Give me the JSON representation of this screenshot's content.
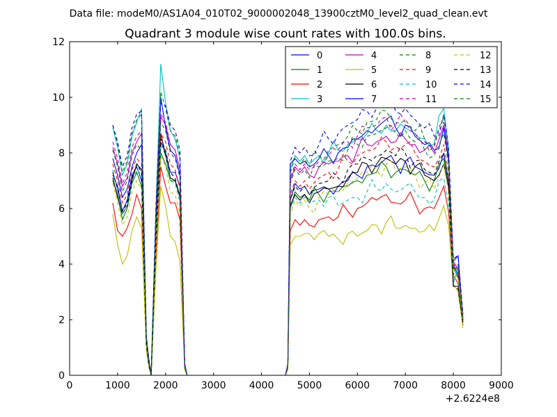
{
  "suptitle": "Data file: modeM0/AS1A04_010T02_9000002048_13900cztM0_level2_quad_clean.evt",
  "chart_data": {
    "type": "line",
    "title": "Quadrant 3 module wise count rates with 100.0s bins.",
    "xlabel": "",
    "ylabel": "",
    "x_offset_label": "+2.6224e8",
    "xlim": [
      0,
      9000
    ],
    "ylim": [
      0,
      12
    ],
    "x_ticks": [
      0,
      1000,
      2000,
      3000,
      4000,
      5000,
      6000,
      7000,
      8000,
      9000
    ],
    "y_ticks": [
      0,
      2,
      4,
      6,
      8,
      10,
      12
    ],
    "grid": false,
    "legend_position": "top-right",
    "legend_columns": 4,
    "anchor_x": [
      900,
      1000,
      1100,
      1200,
      1300,
      1400,
      1500,
      1600,
      1650,
      1700,
      1800,
      1900,
      2000,
      2100,
      2200,
      2300,
      2400,
      2450,
      2600,
      3500,
      4500,
      4550,
      4600,
      4700,
      4800,
      4900,
      5000,
      5200,
      5400,
      5600,
      5800,
      6000,
      6200,
      6400,
      6600,
      6800,
      7000,
      7200,
      7400,
      7600,
      7800,
      7900,
      8000,
      8100,
      8200
    ],
    "series": [
      {
        "name": "0",
        "color": "#0000ff",
        "style": "solid",
        "values": [
          7.2,
          6.8,
          5.9,
          6.3,
          7.2,
          7.5,
          7.0,
          1.2,
          0.5,
          0.0,
          5.0,
          8.4,
          8.0,
          7.3,
          7.3,
          6.8,
          0.3,
          0.0,
          0.0,
          0.0,
          0.0,
          0.3,
          6.3,
          6.9,
          6.7,
          6.8,
          6.5,
          6.7,
          6.7,
          6.8,
          7.0,
          7.2,
          7.5,
          7.5,
          7.8,
          7.6,
          7.7,
          7.5,
          7.3,
          7.2,
          8.0,
          7.0,
          4.0,
          3.6,
          2.0
        ]
      },
      {
        "name": "1",
        "color": "#008000",
        "style": "solid",
        "values": [
          7.0,
          6.5,
          5.6,
          6.0,
          6.9,
          7.3,
          6.8,
          1.1,
          0.4,
          0.0,
          4.8,
          8.0,
          7.6,
          7.0,
          7.0,
          6.5,
          0.3,
          0.0,
          0.0,
          0.0,
          0.0,
          0.3,
          6.0,
          6.6,
          6.4,
          6.5,
          6.3,
          6.5,
          6.6,
          6.6,
          6.8,
          7.0,
          7.2,
          7.3,
          7.5,
          7.3,
          7.4,
          7.2,
          7.0,
          7.0,
          7.8,
          6.8,
          3.9,
          3.5,
          1.9
        ]
      },
      {
        "name": "2",
        "color": "#ff0000",
        "style": "solid",
        "values": [
          6.2,
          5.2,
          5.0,
          5.3,
          5.8,
          6.5,
          6.0,
          1.0,
          0.4,
          0.0,
          4.3,
          7.5,
          6.8,
          6.2,
          6.2,
          5.6,
          0.3,
          0.0,
          0.0,
          0.0,
          0.0,
          0.3,
          5.2,
          5.6,
          5.4,
          5.6,
          5.4,
          5.6,
          5.7,
          5.7,
          5.9,
          6.0,
          6.2,
          6.3,
          6.5,
          6.2,
          6.3,
          6.2,
          6.0,
          6.0,
          6.8,
          5.9,
          3.6,
          3.3,
          1.8
        ]
      },
      {
        "name": "3",
        "color": "#00bfbf",
        "style": "solid",
        "values": [
          8.9,
          8.2,
          7.2,
          7.6,
          8.6,
          9.1,
          9.6,
          1.4,
          0.6,
          0.0,
          6.0,
          11.2,
          9.8,
          8.8,
          8.5,
          7.8,
          0.4,
          0.0,
          0.0,
          0.0,
          0.0,
          0.4,
          7.4,
          7.9,
          7.7,
          7.9,
          7.6,
          7.9,
          8.0,
          8.1,
          8.3,
          8.5,
          8.7,
          8.8,
          9.0,
          8.8,
          8.9,
          8.7,
          8.5,
          8.3,
          9.6,
          8.2,
          3.3,
          3.9,
          2.2
        ]
      },
      {
        "name": "4",
        "color": "#bf00bf",
        "style": "solid",
        "values": [
          8.2,
          7.6,
          6.8,
          7.1,
          8.0,
          8.4,
          8.7,
          1.3,
          0.5,
          0.0,
          5.6,
          9.3,
          9.0,
          8.3,
          8.1,
          7.4,
          0.4,
          0.0,
          0.0,
          0.0,
          0.0,
          0.4,
          7.0,
          7.5,
          7.3,
          7.5,
          7.2,
          7.5,
          7.6,
          7.7,
          7.9,
          8.1,
          8.3,
          8.4,
          8.6,
          8.4,
          8.5,
          8.3,
          8.1,
          8.0,
          9.0,
          7.8,
          4.1,
          3.8,
          2.1
        ]
      },
      {
        "name": "5",
        "color": "#bfbf00",
        "style": "solid",
        "values": [
          5.8,
          4.7,
          4.0,
          4.3,
          5.2,
          5.7,
          5.3,
          0.9,
          0.3,
          0.0,
          3.8,
          6.8,
          6.1,
          5.0,
          4.8,
          4.1,
          0.2,
          0.0,
          0.0,
          0.0,
          0.0,
          0.2,
          4.7,
          5.0,
          5.0,
          5.1,
          5.1,
          5.1,
          5.0,
          4.9,
          5.1,
          5.0,
          5.2,
          5.4,
          5.5,
          5.3,
          5.4,
          5.3,
          5.2,
          5.2,
          6.1,
          5.4,
          3.3,
          3.0,
          1.7
        ]
      },
      {
        "name": "6",
        "color": "#000000",
        "style": "solid",
        "values": [
          7.1,
          6.4,
          5.8,
          6.1,
          7.0,
          7.6,
          7.4,
          1.1,
          0.4,
          0.0,
          4.9,
          8.7,
          7.9,
          7.1,
          7.0,
          6.4,
          0.3,
          0.0,
          0.0,
          0.0,
          0.0,
          0.3,
          6.1,
          6.5,
          6.3,
          6.5,
          6.2,
          6.6,
          6.7,
          6.8,
          7.1,
          7.3,
          7.6,
          7.6,
          7.8,
          7.6,
          7.7,
          7.5,
          7.2,
          7.0,
          7.6,
          6.8,
          3.2,
          3.2,
          1.9
        ]
      },
      {
        "name": "7",
        "color": "#0000ff",
        "style": "solid",
        "values": [
          7.8,
          7.2,
          6.4,
          6.7,
          7.5,
          8.0,
          8.3,
          1.2,
          0.5,
          0.0,
          5.4,
          10.0,
          8.9,
          8.1,
          7.9,
          7.2,
          0.4,
          0.0,
          0.0,
          0.0,
          0.0,
          0.4,
          7.6,
          7.8,
          7.6,
          7.7,
          7.5,
          7.8,
          7.9,
          8.0,
          8.2,
          8.5,
          8.8,
          8.9,
          9.2,
          8.9,
          9.0,
          8.6,
          8.3,
          8.1,
          8.9,
          7.7,
          4.1,
          4.3,
          2.0
        ]
      },
      {
        "name": "8",
        "color": "#008000",
        "style": "dashed",
        "values": [
          9.0,
          8.3,
          7.3,
          7.7,
          8.7,
          9.2,
          9.4,
          1.4,
          0.6,
          0.0,
          6.0,
          10.2,
          9.6,
          8.8,
          8.6,
          7.9,
          0.4,
          0.0,
          0.0,
          0.0,
          0.0,
          0.4,
          7.3,
          7.8,
          7.6,
          7.8,
          7.5,
          7.9,
          8.1,
          8.3,
          8.6,
          8.8,
          9.1,
          9.2,
          9.5,
          9.1,
          9.2,
          8.8,
          8.5,
          8.3,
          9.3,
          8.0,
          3.6,
          4.0,
          2.2
        ]
      },
      {
        "name": "9",
        "color": "#ff0000",
        "style": "dashed",
        "values": [
          7.6,
          7.0,
          6.2,
          6.5,
          7.4,
          7.8,
          7.6,
          1.2,
          0.5,
          0.0,
          5.2,
          8.7,
          8.4,
          7.6,
          7.4,
          6.7,
          0.3,
          0.0,
          0.0,
          0.0,
          0.0,
          0.3,
          6.5,
          7.0,
          6.8,
          7.0,
          6.7,
          7.1,
          7.3,
          7.4,
          7.7,
          7.9,
          8.1,
          8.2,
          8.4,
          8.2,
          8.3,
          8.0,
          7.7,
          7.5,
          8.3,
          7.3,
          3.9,
          3.7,
          2.0
        ]
      },
      {
        "name": "10",
        "color": "#00bfbf",
        "style": "dashed",
        "values": [
          7.4,
          6.6,
          5.8,
          6.1,
          6.9,
          7.4,
          7.2,
          1.1,
          0.4,
          0.0,
          4.9,
          8.3,
          7.9,
          7.0,
          6.9,
          6.2,
          0.3,
          0.0,
          0.0,
          0.0,
          0.0,
          0.3,
          6.0,
          6.4,
          6.2,
          6.4,
          6.2,
          6.3,
          6.4,
          6.1,
          6.3,
          6.4,
          6.6,
          6.7,
          6.9,
          6.6,
          6.8,
          6.6,
          6.4,
          6.3,
          7.1,
          6.2,
          3.5,
          3.4,
          1.9
        ]
      },
      {
        "name": "11",
        "color": "#bf00bf",
        "style": "dashed",
        "values": [
          8.4,
          7.8,
          6.9,
          7.3,
          8.2,
          8.6,
          8.8,
          1.3,
          0.5,
          0.0,
          5.7,
          9.4,
          9.1,
          8.3,
          8.1,
          7.4,
          0.4,
          0.0,
          0.0,
          0.0,
          0.0,
          0.4,
          7.1,
          7.6,
          7.4,
          7.6,
          7.4,
          7.7,
          7.9,
          8.1,
          8.4,
          8.6,
          8.9,
          9.0,
          9.3,
          9.0,
          9.1,
          8.7,
          8.4,
          8.2,
          9.1,
          7.9,
          4.0,
          3.9,
          2.1
        ]
      },
      {
        "name": "12",
        "color": "#bfbf00",
        "style": "dashed",
        "values": [
          6.9,
          6.2,
          5.4,
          5.7,
          6.6,
          7.0,
          6.7,
          1.1,
          0.4,
          0.0,
          4.6,
          7.9,
          7.5,
          6.6,
          6.5,
          5.8,
          0.3,
          0.0,
          0.0,
          0.0,
          0.0,
          0.3,
          5.8,
          6.3,
          6.1,
          6.3,
          6.0,
          6.4,
          6.5,
          6.6,
          6.9,
          7.1,
          7.3,
          7.4,
          7.6,
          7.4,
          7.5,
          7.2,
          6.9,
          6.7,
          7.6,
          6.6,
          3.7,
          3.5,
          1.9
        ]
      },
      {
        "name": "13",
        "color": "#000000",
        "style": "dashed",
        "values": [
          7.3,
          6.7,
          5.9,
          6.2,
          7.1,
          7.6,
          7.3,
          1.2,
          0.4,
          0.0,
          5.0,
          8.5,
          8.1,
          7.3,
          7.1,
          6.4,
          0.3,
          0.0,
          0.0,
          0.0,
          0.0,
          0.3,
          6.3,
          6.8,
          6.6,
          6.8,
          6.5,
          6.9,
          7.0,
          7.1,
          7.4,
          7.6,
          7.8,
          7.9,
          8.1,
          7.9,
          8.0,
          7.7,
          7.4,
          7.2,
          8.0,
          7.0,
          3.2,
          3.1,
          1.9
        ]
      },
      {
        "name": "14",
        "color": "#0000ff",
        "style": "dashed",
        "values": [
          9.0,
          8.4,
          7.5,
          7.9,
          8.9,
          9.4,
          9.5,
          1.4,
          0.6,
          0.0,
          6.1,
          9.8,
          9.7,
          9.0,
          8.8,
          8.1,
          0.4,
          0.0,
          0.0,
          0.0,
          0.0,
          0.4,
          7.7,
          8.2,
          8.0,
          8.2,
          7.9,
          8.3,
          8.5,
          8.7,
          9.0,
          9.2,
          9.5,
          9.6,
          9.9,
          9.5,
          9.6,
          9.2,
          8.9,
          8.6,
          9.4,
          8.2,
          4.2,
          4.3,
          2.2
        ]
      },
      {
        "name": "15",
        "color": "#008000",
        "style": "dashed",
        "values": [
          8.1,
          7.5,
          6.6,
          7.0,
          7.9,
          8.3,
          8.1,
          1.3,
          0.5,
          0.0,
          5.5,
          9.1,
          8.8,
          8.0,
          7.8,
          7.1,
          0.3,
          0.0,
          0.0,
          0.0,
          0.0,
          0.3,
          6.9,
          7.4,
          7.2,
          7.4,
          7.1,
          7.5,
          7.7,
          7.8,
          8.1,
          8.3,
          8.6,
          8.7,
          8.9,
          8.7,
          8.8,
          8.4,
          8.1,
          7.9,
          8.7,
          7.6,
          3.8,
          3.9,
          2.0
        ]
      }
    ]
  }
}
